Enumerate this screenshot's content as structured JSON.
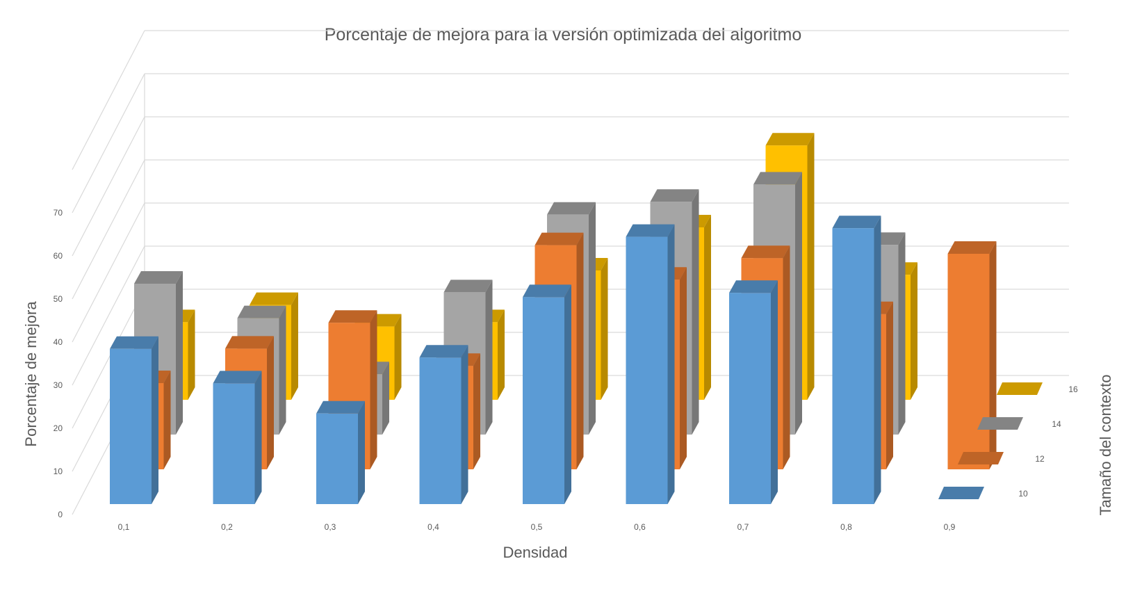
{
  "chart_data": {
    "type": "bar",
    "subtype": "3d-column",
    "title": "Porcentaje de mejora para la versión optimizada del algoritmo",
    "xlabel": "Densidad",
    "ylabel": "Porcentaje de mejora",
    "zlabel": "Tamaño del contexto",
    "categories": [
      "0,1",
      "0,2",
      "0,3",
      "0,4",
      "0,5",
      "0,6",
      "0,7",
      "0,8",
      "0,9"
    ],
    "y_ticks": [
      "0",
      "10",
      "20",
      "30",
      "40",
      "50",
      "60",
      "70"
    ],
    "ylim": [
      0,
      70
    ],
    "grid": true,
    "series": [
      {
        "name": "10",
        "color": "#5B9BD5",
        "values": [
          36,
          28,
          21,
          34,
          48,
          62,
          49,
          64,
          0
        ]
      },
      {
        "name": "12",
        "color": "#ED7D31",
        "values": [
          20,
          28,
          34,
          24,
          52,
          44,
          49,
          36,
          50
        ]
      },
      {
        "name": "14",
        "color": "#A5A5A5",
        "values": [
          35,
          27,
          14,
          33,
          51,
          54,
          58,
          44,
          0
        ]
      },
      {
        "name": "16",
        "color": "#FFC000",
        "values": [
          18,
          22,
          17,
          18,
          30,
          40,
          59,
          29,
          0
        ]
      }
    ]
  }
}
